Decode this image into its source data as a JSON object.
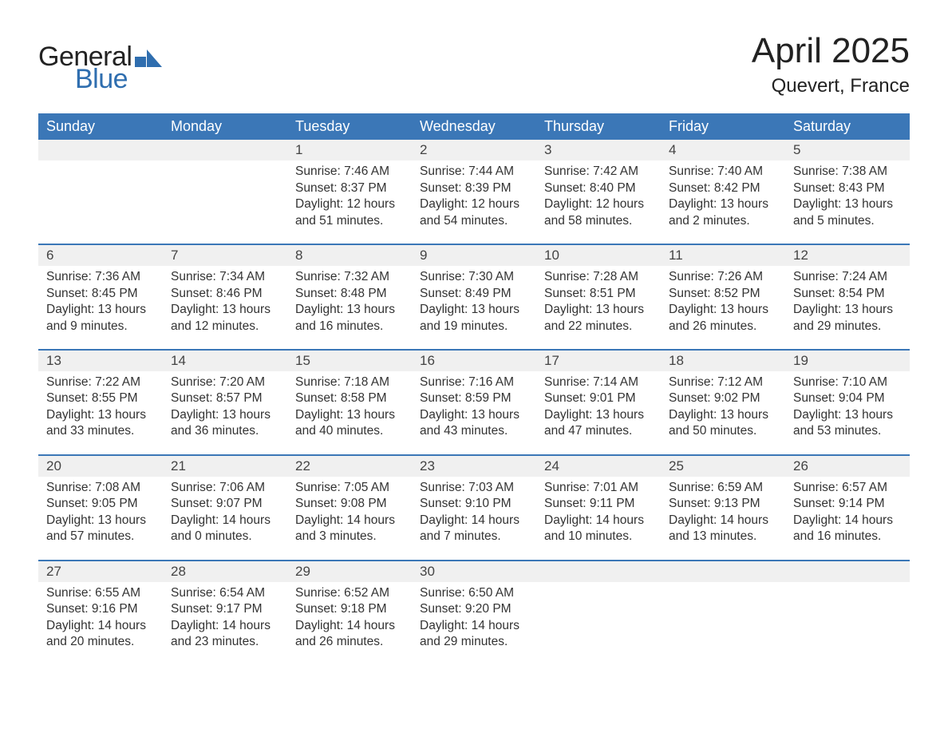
{
  "logo": {
    "line1": "General",
    "line2": "Blue",
    "color_dark": "#222222",
    "color_blue": "#2f6eaf"
  },
  "title": "April 2025",
  "location": "Quevert, France",
  "colors": {
    "header_bg": "#3b77b7",
    "header_fg": "#ffffff",
    "daynum_bg": "#f0f0f0",
    "row_border": "#3b77b7",
    "text": "#333333",
    "page_bg": "#ffffff"
  },
  "weekdays": [
    "Sunday",
    "Monday",
    "Tuesday",
    "Wednesday",
    "Thursday",
    "Friday",
    "Saturday"
  ],
  "weeks": [
    [
      null,
      null,
      {
        "day": "1",
        "sunrise": "7:46 AM",
        "sunset": "8:37 PM",
        "daylight": "12 hours and 51 minutes."
      },
      {
        "day": "2",
        "sunrise": "7:44 AM",
        "sunset": "8:39 PM",
        "daylight": "12 hours and 54 minutes."
      },
      {
        "day": "3",
        "sunrise": "7:42 AM",
        "sunset": "8:40 PM",
        "daylight": "12 hours and 58 minutes."
      },
      {
        "day": "4",
        "sunrise": "7:40 AM",
        "sunset": "8:42 PM",
        "daylight": "13 hours and 2 minutes."
      },
      {
        "day": "5",
        "sunrise": "7:38 AM",
        "sunset": "8:43 PM",
        "daylight": "13 hours and 5 minutes."
      }
    ],
    [
      {
        "day": "6",
        "sunrise": "7:36 AM",
        "sunset": "8:45 PM",
        "daylight": "13 hours and 9 minutes."
      },
      {
        "day": "7",
        "sunrise": "7:34 AM",
        "sunset": "8:46 PM",
        "daylight": "13 hours and 12 minutes."
      },
      {
        "day": "8",
        "sunrise": "7:32 AM",
        "sunset": "8:48 PM",
        "daylight": "13 hours and 16 minutes."
      },
      {
        "day": "9",
        "sunrise": "7:30 AM",
        "sunset": "8:49 PM",
        "daylight": "13 hours and 19 minutes."
      },
      {
        "day": "10",
        "sunrise": "7:28 AM",
        "sunset": "8:51 PM",
        "daylight": "13 hours and 22 minutes."
      },
      {
        "day": "11",
        "sunrise": "7:26 AM",
        "sunset": "8:52 PM",
        "daylight": "13 hours and 26 minutes."
      },
      {
        "day": "12",
        "sunrise": "7:24 AM",
        "sunset": "8:54 PM",
        "daylight": "13 hours and 29 minutes."
      }
    ],
    [
      {
        "day": "13",
        "sunrise": "7:22 AM",
        "sunset": "8:55 PM",
        "daylight": "13 hours and 33 minutes."
      },
      {
        "day": "14",
        "sunrise": "7:20 AM",
        "sunset": "8:57 PM",
        "daylight": "13 hours and 36 minutes."
      },
      {
        "day": "15",
        "sunrise": "7:18 AM",
        "sunset": "8:58 PM",
        "daylight": "13 hours and 40 minutes."
      },
      {
        "day": "16",
        "sunrise": "7:16 AM",
        "sunset": "8:59 PM",
        "daylight": "13 hours and 43 minutes."
      },
      {
        "day": "17",
        "sunrise": "7:14 AM",
        "sunset": "9:01 PM",
        "daylight": "13 hours and 47 minutes."
      },
      {
        "day": "18",
        "sunrise": "7:12 AM",
        "sunset": "9:02 PM",
        "daylight": "13 hours and 50 minutes."
      },
      {
        "day": "19",
        "sunrise": "7:10 AM",
        "sunset": "9:04 PM",
        "daylight": "13 hours and 53 minutes."
      }
    ],
    [
      {
        "day": "20",
        "sunrise": "7:08 AM",
        "sunset": "9:05 PM",
        "daylight": "13 hours and 57 minutes."
      },
      {
        "day": "21",
        "sunrise": "7:06 AM",
        "sunset": "9:07 PM",
        "daylight": "14 hours and 0 minutes."
      },
      {
        "day": "22",
        "sunrise": "7:05 AM",
        "sunset": "9:08 PM",
        "daylight": "14 hours and 3 minutes."
      },
      {
        "day": "23",
        "sunrise": "7:03 AM",
        "sunset": "9:10 PM",
        "daylight": "14 hours and 7 minutes."
      },
      {
        "day": "24",
        "sunrise": "7:01 AM",
        "sunset": "9:11 PM",
        "daylight": "14 hours and 10 minutes."
      },
      {
        "day": "25",
        "sunrise": "6:59 AM",
        "sunset": "9:13 PM",
        "daylight": "14 hours and 13 minutes."
      },
      {
        "day": "26",
        "sunrise": "6:57 AM",
        "sunset": "9:14 PM",
        "daylight": "14 hours and 16 minutes."
      }
    ],
    [
      {
        "day": "27",
        "sunrise": "6:55 AM",
        "sunset": "9:16 PM",
        "daylight": "14 hours and 20 minutes."
      },
      {
        "day": "28",
        "sunrise": "6:54 AM",
        "sunset": "9:17 PM",
        "daylight": "14 hours and 23 minutes."
      },
      {
        "day": "29",
        "sunrise": "6:52 AM",
        "sunset": "9:18 PM",
        "daylight": "14 hours and 26 minutes."
      },
      {
        "day": "30",
        "sunrise": "6:50 AM",
        "sunset": "9:20 PM",
        "daylight": "14 hours and 29 minutes."
      },
      null,
      null,
      null
    ]
  ],
  "labels": {
    "sunrise": "Sunrise: ",
    "sunset": "Sunset: ",
    "daylight": "Daylight: "
  }
}
